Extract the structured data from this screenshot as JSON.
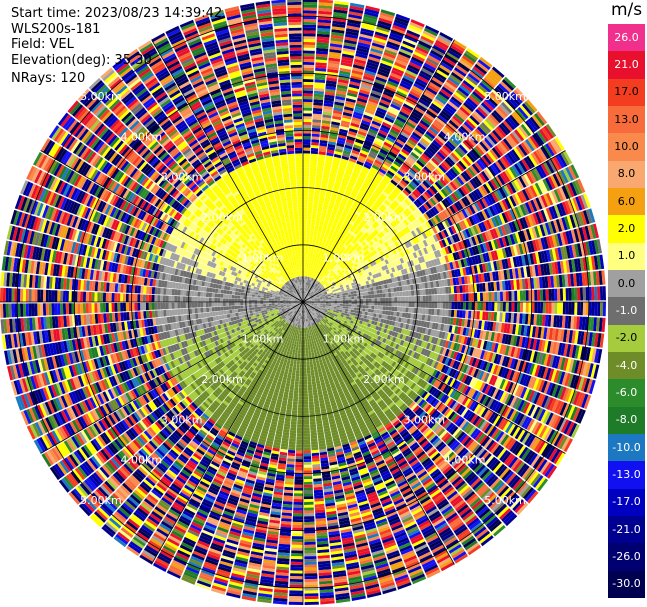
{
  "header": {
    "start_time": "Start time: 2023/08/23 14:39:42",
    "instrument": "WLS200s-181",
    "field": "Field: VEL",
    "elevation": "Elevation(deg): 35.30",
    "nrays": "NRays: 120"
  },
  "colorbar": {
    "unit": "m/s",
    "bins": [
      {
        "label": "26.0",
        "color": "#f0308c"
      },
      {
        "label": "21.0",
        "color": "#e8102c"
      },
      {
        "label": "17.0",
        "color": "#f43c20"
      },
      {
        "label": "13.0",
        "color": "#f86c3c"
      },
      {
        "label": "10.0",
        "color": "#fa8a4c"
      },
      {
        "label": "8.0",
        "color": "#f9a870"
      },
      {
        "label": "6.0",
        "color": "#f5a010"
      },
      {
        "label": "2.0",
        "color": "#ffff00"
      },
      {
        "label": "1.0",
        "color": "#ffff80"
      },
      {
        "label": "0.0",
        "color": "#a0a0a0"
      },
      {
        "label": "-1.0",
        "color": "#6e6e6e"
      },
      {
        "label": "-2.0",
        "color": "#a4cc3c"
      },
      {
        "label": "-4.0",
        "color": "#6e8c28"
      },
      {
        "label": "-6.0",
        "color": "#2c8c2c"
      },
      {
        "label": "-8.0",
        "color": "#1e7c28"
      },
      {
        "label": "-10.0",
        "color": "#1c78c0"
      },
      {
        "label": "-13.0",
        "color": "#1010f0"
      },
      {
        "label": "-17.0",
        "color": "#0000c0"
      },
      {
        "label": "-21.0",
        "color": "#000090"
      },
      {
        "label": "-26.0",
        "color": "#000070"
      },
      {
        "label": "-30.0",
        "color": "#000050"
      }
    ]
  },
  "range_rings": [
    "1.00km",
    "2.00km",
    "3.00km",
    "4.00km",
    "5.00km"
  ],
  "chart_data": {
    "type": "heatmap",
    "projection": "polar-ppi",
    "field": "VEL",
    "unit": "m/s",
    "elevation_deg": 35.3,
    "nrays": 120,
    "range_rings_km": [
      1,
      2,
      3,
      4,
      5
    ],
    "max_range_km": 5.3,
    "value_range": [
      -30,
      26
    ],
    "clean_region_km": 2.6,
    "pattern": "yellow/orange positive velocities to the north, gray near-zero east/west and center, green negative velocities to the south; noisy random values beyond ~2.6 km"
  }
}
